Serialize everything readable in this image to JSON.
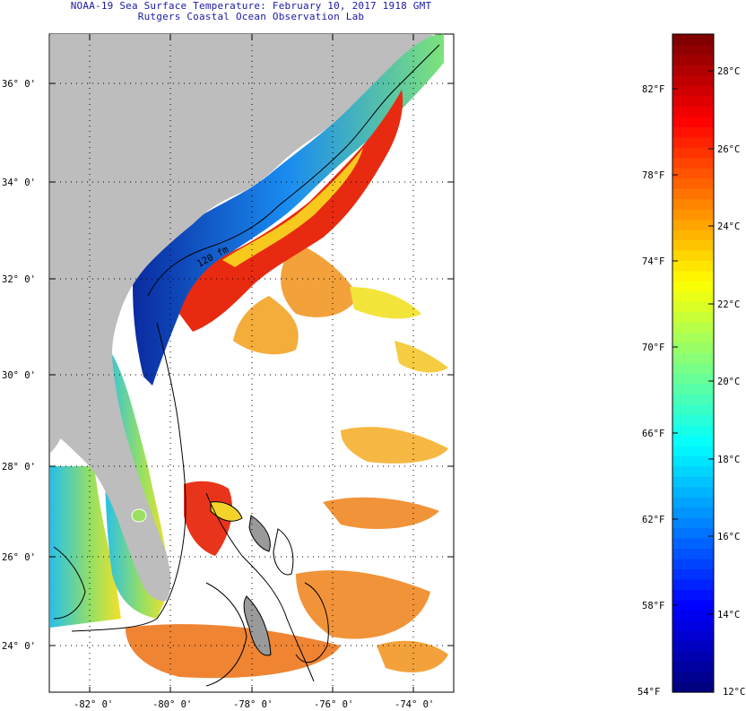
{
  "title_line1": "NOAA-19 Sea Surface Temperature:  February 10, 2017 1918 GMT",
  "title_line2": "Rutgers Coastal Ocean Observation Lab",
  "map": {
    "lat_labels": [
      "36° 0'",
      "34° 0'",
      "32° 0'",
      "30° 0'",
      "28° 0'",
      "26° 0'",
      "24° 0'"
    ],
    "lon_labels": [
      "-82° 0'",
      "-80° 0'",
      "-78° 0'",
      "-76° 0'",
      "-74° 0'"
    ],
    "isobath_label": "120 fm",
    "colors": {
      "land": "#bdbdbd",
      "cold": "#0a2aa0",
      "warm": "#e81e0a",
      "water_nodata": "#ffffff"
    }
  },
  "colorbar": {
    "fahrenheit_labels": [
      "82°F",
      "78°F",
      "74°F",
      "70°F",
      "66°F",
      "62°F",
      "58°F",
      "54°F"
    ],
    "celsius_labels": [
      "28°C",
      "26°C",
      "24°C",
      "22°C",
      "20°C",
      "18°C",
      "16°C",
      "14°C",
      "12°C"
    ],
    "range_f": [
      54,
      85
    ],
    "range_c": [
      12,
      29.4
    ]
  }
}
